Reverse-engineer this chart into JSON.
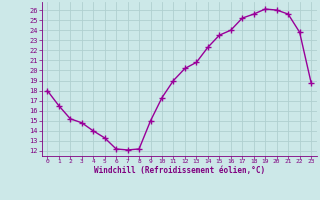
{
  "x": [
    0,
    1,
    2,
    3,
    4,
    5,
    6,
    7,
    8,
    9,
    10,
    11,
    12,
    13,
    14,
    15,
    16,
    17,
    18,
    19,
    20,
    21,
    22,
    23
  ],
  "y": [
    18.0,
    16.5,
    15.2,
    14.8,
    14.0,
    13.3,
    12.2,
    12.1,
    12.2,
    15.0,
    17.3,
    19.0,
    20.2,
    20.8,
    22.3,
    23.5,
    24.0,
    25.2,
    25.6,
    26.1,
    26.0,
    25.6,
    23.8,
    18.8
  ],
  "line_color": "#990099",
  "marker": "+",
  "marker_size": 4,
  "bg_color": "#cce8e8",
  "grid_color": "#b0d0d0",
  "xlabel": "Windchill (Refroidissement éolien,°C)",
  "xlabel_color": "#800080",
  "tick_color": "#800080",
  "xlim": [
    -0.5,
    23.5
  ],
  "ylim": [
    11.5,
    26.8
  ],
  "yticks": [
    12,
    13,
    14,
    15,
    16,
    17,
    18,
    19,
    20,
    21,
    22,
    23,
    24,
    25,
    26
  ],
  "xticks": [
    0,
    1,
    2,
    3,
    4,
    5,
    6,
    7,
    8,
    9,
    10,
    11,
    12,
    13,
    14,
    15,
    16,
    17,
    18,
    19,
    20,
    21,
    22,
    23
  ]
}
